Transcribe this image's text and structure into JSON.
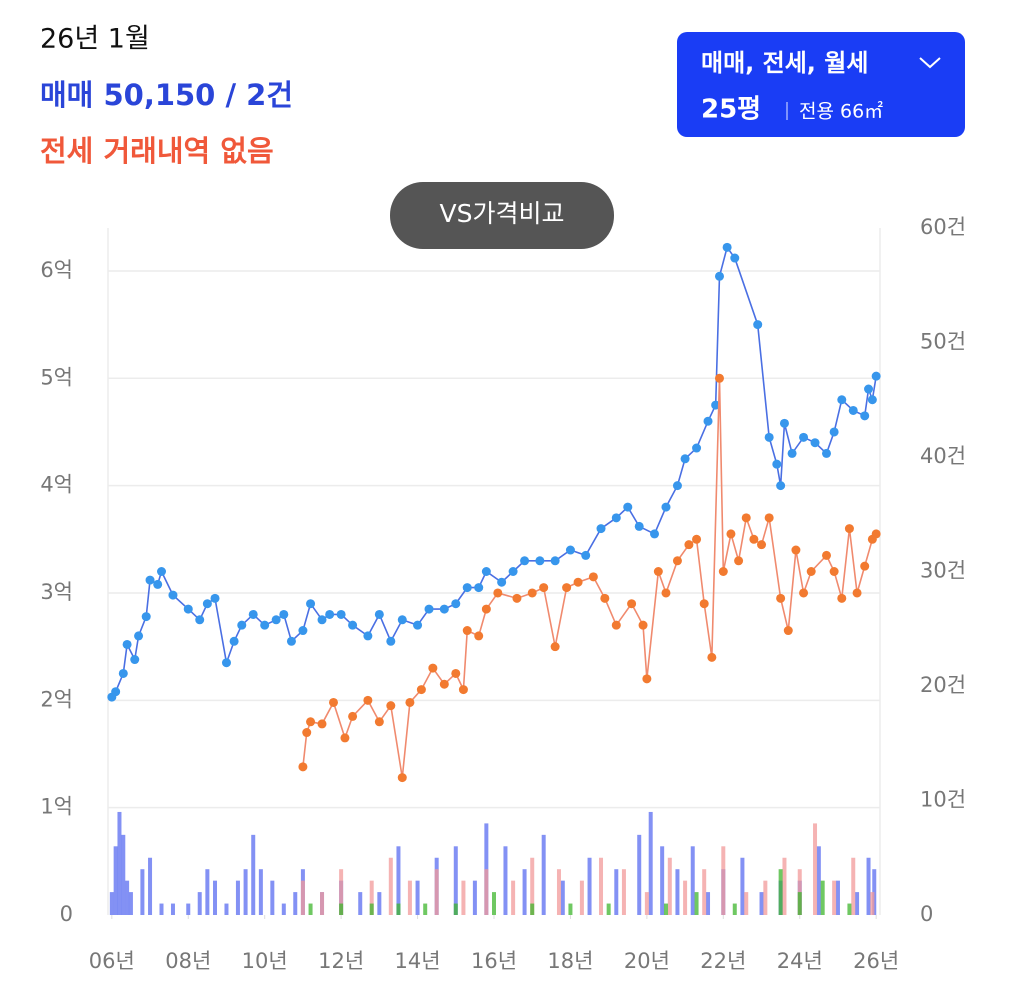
{
  "header": {
    "date": "26년 1월",
    "sale": "매매 50,150 / 2건",
    "jeonse": "전세 거래내역 없음"
  },
  "controls": {
    "filter": "매매, 전세, 월세",
    "size": "25평",
    "area": "전용 66㎡",
    "compare": "VS가격비교"
  },
  "chart_data": {
    "type": "combo",
    "xlim": [
      2005.9,
      2026.1
    ],
    "xticks": [
      {
        "value": 2006,
        "label": "06년"
      },
      {
        "value": 2008,
        "label": "08년"
      },
      {
        "value": 2010,
        "label": "10년"
      },
      {
        "value": 2012,
        "label": "12년"
      },
      {
        "value": 2014,
        "label": "14년"
      },
      {
        "value": 2016,
        "label": "16년"
      },
      {
        "value": 2018,
        "label": "18년"
      },
      {
        "value": 2020,
        "label": "20년"
      },
      {
        "value": 2022,
        "label": "22년"
      },
      {
        "value": 2024,
        "label": "24년"
      },
      {
        "value": 2026,
        "label": "26년"
      }
    ],
    "ylim": [
      0,
      6.4
    ],
    "yticks": [
      0,
      {
        "value": 1,
        "label": "1억"
      },
      {
        "value": 2,
        "label": "2억"
      },
      {
        "value": 3,
        "label": "3억"
      },
      {
        "value": 4,
        "label": "4억"
      },
      {
        "value": 5,
        "label": "5억"
      },
      {
        "value": 6,
        "label": "6억"
      }
    ],
    "y2lim": [
      0,
      60
    ],
    "y2ticks": [
      0,
      {
        "value": 10,
        "label": "10건"
      },
      {
        "value": 20,
        "label": "20건"
      },
      {
        "value": 30,
        "label": "30건"
      },
      {
        "value": 40,
        "label": "40건"
      },
      {
        "value": 50,
        "label": "50건"
      },
      {
        "value": 60,
        "label": "60건"
      }
    ],
    "grid": true,
    "series": [
      {
        "name": "매매",
        "type": "bar",
        "axis": "y2",
        "color": "#5a6cf0",
        "x": [
          2006.0,
          2006.1,
          2006.2,
          2006.3,
          2006.4,
          2006.5,
          2006.8,
          2007.0,
          2007.3,
          2007.6,
          2008.0,
          2008.3,
          2008.5,
          2008.7,
          2009.0,
          2009.3,
          2009.5,
          2009.7,
          2009.9,
          2010.2,
          2010.5,
          2010.8,
          2011.0,
          2011.5,
          2012.0,
          2012.5,
          2013.0,
          2013.5,
          2014.0,
          2014.5,
          2015.0,
          2015.5,
          2015.8,
          2016.3,
          2016.8,
          2017.3,
          2017.8,
          2018.5,
          2019.2,
          2019.8,
          2020.1,
          2020.4,
          2020.8,
          2021.2,
          2021.6,
          2022.0,
          2022.5,
          2023.0,
          2023.5,
          2024.0,
          2024.5,
          2025.0,
          2025.5,
          2025.8,
          2025.95
        ],
        "values": [
          2,
          6,
          9,
          7,
          3,
          2,
          4,
          5,
          1,
          1,
          1,
          2,
          4,
          3,
          1,
          3,
          4,
          7,
          4,
          3,
          1,
          2,
          4,
          2,
          3,
          2,
          2,
          6,
          3,
          5,
          6,
          3,
          8,
          6,
          4,
          7,
          3,
          5,
          4,
          7,
          9,
          6,
          4,
          6,
          2,
          4,
          5,
          2,
          3,
          3,
          6,
          3,
          2,
          5,
          4
        ]
      },
      {
        "name": "전세",
        "type": "bar",
        "axis": "y2",
        "color": "#f29a9a",
        "x": [
          2011.0,
          2011.5,
          2012.0,
          2012.8,
          2013.3,
          2013.8,
          2014.5,
          2015.2,
          2015.8,
          2016.5,
          2017.0,
          2017.7,
          2018.3,
          2018.8,
          2019.4,
          2020.0,
          2020.6,
          2021.0,
          2021.5,
          2022.0,
          2022.6,
          2023.1,
          2023.6,
          2024.0,
          2024.4,
          2024.9,
          2025.4,
          2025.9
        ],
        "values": [
          3,
          2,
          4,
          3,
          5,
          3,
          4,
          3,
          4,
          3,
          5,
          4,
          3,
          5,
          4,
          2,
          5,
          3,
          4,
          6,
          2,
          3,
          5,
          4,
          8,
          3,
          5,
          2
        ]
      },
      {
        "name": "월세",
        "type": "bar",
        "axis": "y2",
        "color": "#3fb52e",
        "x": [
          2011.2,
          2012.0,
          2012.8,
          2013.5,
          2014.2,
          2015.0,
          2016.0,
          2017.0,
          2018.0,
          2019.0,
          2020.5,
          2021.3,
          2022.3,
          2023.5,
          2024.0,
          2024.6,
          2025.3
        ],
        "values": [
          1,
          1,
          1,
          1,
          1,
          1,
          2,
          1,
          1,
          1,
          1,
          2,
          1,
          4,
          2,
          3,
          1
        ]
      },
      {
        "name": "매매",
        "type": "line",
        "color": "#4a6fe3",
        "marker": "#3796ec",
        "x": [
          2006.0,
          2006.1,
          2006.3,
          2006.4,
          2006.6,
          2006.7,
          2006.9,
          2007.0,
          2007.2,
          2007.3,
          2007.6,
          2008.0,
          2008.3,
          2008.5,
          2008.7,
          2009.0,
          2009.2,
          2009.4,
          2009.7,
          2010.0,
          2010.3,
          2010.5,
          2010.7,
          2011.0,
          2011.2,
          2011.5,
          2011.7,
          2012.0,
          2012.3,
          2012.7,
          2013.0,
          2013.3,
          2013.6,
          2014.0,
          2014.3,
          2014.7,
          2015.0,
          2015.3,
          2015.6,
          2015.8,
          2016.2,
          2016.5,
          2016.8,
          2017.2,
          2017.6,
          2018.0,
          2018.4,
          2018.8,
          2019.2,
          2019.5,
          2019.8,
          2020.2,
          2020.5,
          2020.8,
          2021.0,
          2021.3,
          2021.6,
          2021.8,
          2021.9,
          2022.1,
          2022.3,
          2022.9,
          2023.2,
          2023.4,
          2023.5,
          2023.6,
          2023.8,
          2024.1,
          2024.4,
          2024.7,
          2024.9,
          2025.1,
          2025.4,
          2025.7,
          2025.8,
          2025.9,
          2026.0
        ],
        "values": [
          2.03,
          2.08,
          2.25,
          2.52,
          2.38,
          2.6,
          2.78,
          3.12,
          3.08,
          3.2,
          2.98,
          2.85,
          2.75,
          2.9,
          2.95,
          2.35,
          2.55,
          2.7,
          2.8,
          2.7,
          2.75,
          2.8,
          2.55,
          2.65,
          2.9,
          2.75,
          2.8,
          2.8,
          2.7,
          2.6,
          2.8,
          2.55,
          2.75,
          2.7,
          2.85,
          2.85,
          2.9,
          3.05,
          3.05,
          3.2,
          3.1,
          3.2,
          3.3,
          3.3,
          3.3,
          3.4,
          3.35,
          3.6,
          3.7,
          3.8,
          3.62,
          3.55,
          3.8,
          4.0,
          4.25,
          4.35,
          4.6,
          4.75,
          5.95,
          6.22,
          6.12,
          5.5,
          4.45,
          4.2,
          4.0,
          4.58,
          4.3,
          4.45,
          4.4,
          4.3,
          4.5,
          4.8,
          4.7,
          4.65,
          4.9,
          4.8,
          5.02
        ]
      },
      {
        "name": "전세",
        "type": "line",
        "color": "#f08a6e",
        "marker": "#f27a30",
        "x": [
          2011.0,
          2011.1,
          2011.2,
          2011.5,
          2011.8,
          2012.1,
          2012.3,
          2012.7,
          2013.0,
          2013.3,
          2013.6,
          2013.8,
          2014.1,
          2014.4,
          2014.7,
          2015.0,
          2015.2,
          2015.3,
          2015.6,
          2015.8,
          2016.1,
          2016.6,
          2017.0,
          2017.3,
          2017.6,
          2017.9,
          2018.2,
          2018.6,
          2018.9,
          2019.2,
          2019.6,
          2019.9,
          2020.0,
          2020.3,
          2020.5,
          2020.8,
          2021.1,
          2021.3,
          2021.5,
          2021.7,
          2021.9,
          2022.0,
          2022.2,
          2022.4,
          2022.6,
          2022.8,
          2023.0,
          2023.2,
          2023.5,
          2023.7,
          2023.9,
          2024.1,
          2024.3,
          2024.7,
          2024.9,
          2025.1,
          2025.3,
          2025.5,
          2025.7,
          2025.9,
          2026.0
        ],
        "values": [
          1.38,
          1.7,
          1.8,
          1.78,
          1.98,
          1.65,
          1.85,
          2.0,
          1.8,
          1.95,
          1.28,
          1.98,
          2.1,
          2.3,
          2.15,
          2.25,
          2.1,
          2.65,
          2.6,
          2.85,
          3.0,
          2.95,
          3.0,
          3.05,
          2.5,
          3.05,
          3.1,
          3.15,
          2.95,
          2.7,
          2.9,
          2.7,
          2.2,
          3.2,
          3.0,
          3.3,
          3.45,
          3.5,
          2.9,
          2.4,
          5.0,
          3.2,
          3.55,
          3.3,
          3.7,
          3.5,
          3.45,
          3.7,
          2.95,
          2.65,
          3.4,
          3.0,
          3.2,
          3.35,
          3.2,
          2.95,
          3.6,
          3.0,
          3.25,
          3.5,
          3.55
        ]
      }
    ]
  }
}
